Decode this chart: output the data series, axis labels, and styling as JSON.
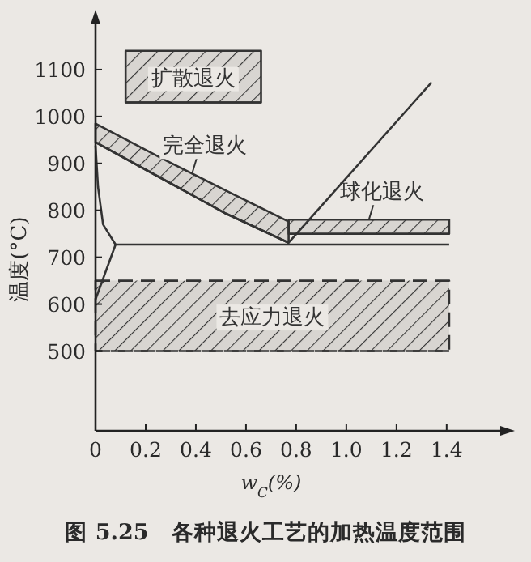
{
  "chart_data": {
    "type": "line",
    "xlabel": "w$_{C}$(%)",
    "ylabel": "温度(°C)",
    "annotations": [
      "图 5.25　各种退火工艺的加热温度范围"
    ],
    "xlim": [
      0,
      1.62
    ],
    "ylim": [
      330,
      1200
    ],
    "xticks": [
      0,
      0.2,
      0.4,
      0.6,
      0.8,
      {
        "value": 1,
        "label": "1.0"
      },
      1.2,
      1.4
    ],
    "yticks": [
      500,
      600,
      700,
      800,
      900,
      1000,
      1100
    ],
    "marker": "none",
    "line_style": "solid",
    "series": [
      {
        "name": "扩散退火",
        "color": "#333333",
        "x": [
          0.12,
          0.66
        ],
        "values": [
          1030,
          1030
        ],
        "lower": [
          1030,
          1030
        ],
        "upper": [
          1140,
          1140
        ]
      },
      {
        "name": "完全退火",
        "color": "#333333",
        "x": [
          0,
          0.26,
          0.52,
          0.77
        ],
        "values": [
          945,
          869,
          793,
          731
        ],
        "lower": [
          945,
          869,
          793,
          731
        ],
        "upper": [
          985,
          912,
          842,
          776
        ]
      },
      {
        "name": "球化退火",
        "color": "#333333",
        "x": [
          0.77,
          1.41
        ],
        "values": [
          750,
          750
        ],
        "lower": [
          750,
          750
        ],
        "upper": [
          780,
          780
        ]
      },
      {
        "name": "去应力退火",
        "color": "#333333",
        "line_style": "dashed",
        "x": [
          0,
          1.41
        ],
        "values": [
          500,
          500
        ],
        "lower": [
          500,
          500
        ],
        "upper": [
          650,
          650
        ]
      },
      {
        "color": "#333333",
        "x": [
          0,
          0.01,
          0.03,
          0.08
        ],
        "values": [
          938,
          850,
          770,
          727
        ]
      },
      {
        "color": "#333333",
        "x": [
          0,
          0.08
        ],
        "values": [
          610,
          727
        ]
      },
      {
        "color": "#333333",
        "x": [
          0.08,
          1.41
        ],
        "values": [
          727,
          727
        ]
      },
      {
        "color": "#333333",
        "x": [
          0.77,
          1.34
        ],
        "values": [
          731,
          1073
        ]
      }
    ]
  }
}
